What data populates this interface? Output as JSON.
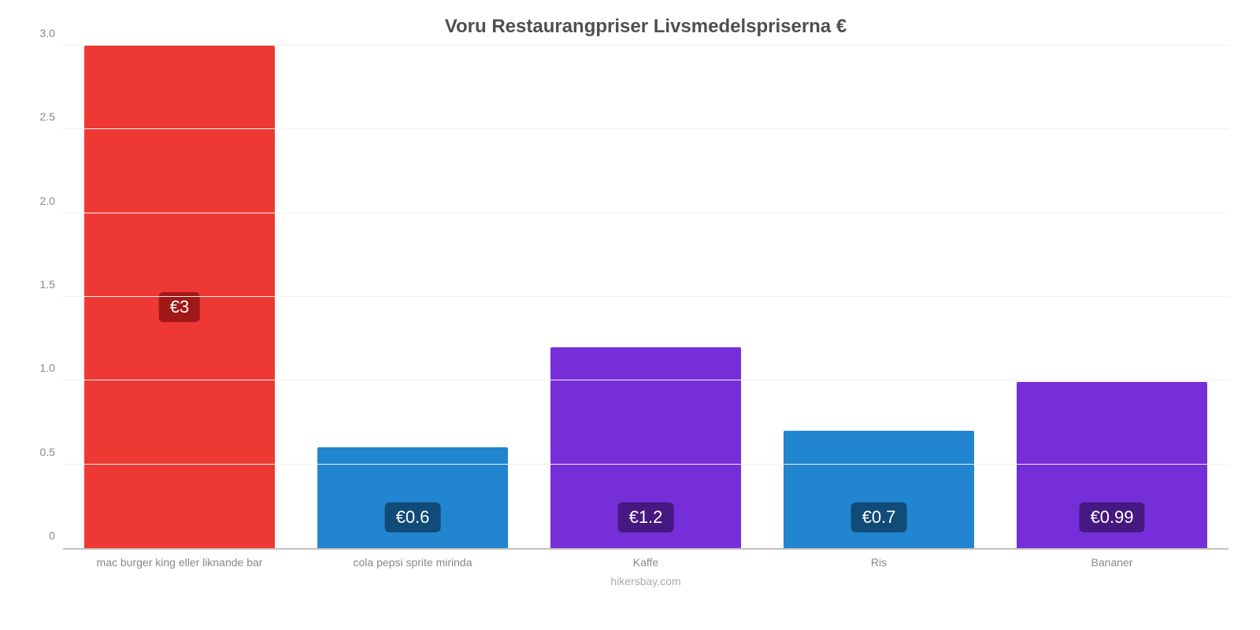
{
  "chart": {
    "type": "bar",
    "title": "Voru Restaurangpriser Livsmedelspriserna €",
    "title_fontsize": 24,
    "title_color": "#4f4f4f",
    "source": "hikersbay.com",
    "background_color": "#ffffff",
    "grid_color": "#f0f0f0",
    "axis_color": "#c0c0c0",
    "label_color": "#888888",
    "xlabel_fontsize": 14,
    "ylabel_fontsize": 14,
    "ylim": [
      0,
      3.0
    ],
    "ytick_step": 0.5,
    "yticks": [
      "0",
      "0.5",
      "1.0",
      "1.5",
      "2.0",
      "2.5",
      "3.0"
    ],
    "bar_width": 0.82,
    "categories": [
      "mac burger king eller liknande bar",
      "cola pepsi sprite mirinda",
      "Kaffe",
      "Ris",
      "Bananer"
    ],
    "values": [
      3.0,
      0.6,
      1.2,
      0.7,
      0.99
    ],
    "value_labels": [
      "€3",
      "€0.6",
      "€1.2",
      "€0.7",
      "€0.99"
    ],
    "bar_colors": [
      "#ed3833",
      "#2185d0",
      "#762ed8",
      "#2185d0",
      "#762ed8"
    ],
    "badge_colors": [
      "#a11818",
      "#114b77",
      "#461881",
      "#114b77",
      "#461881"
    ],
    "badge_fontsize": 22,
    "badge_text_color": "#ffffff"
  }
}
